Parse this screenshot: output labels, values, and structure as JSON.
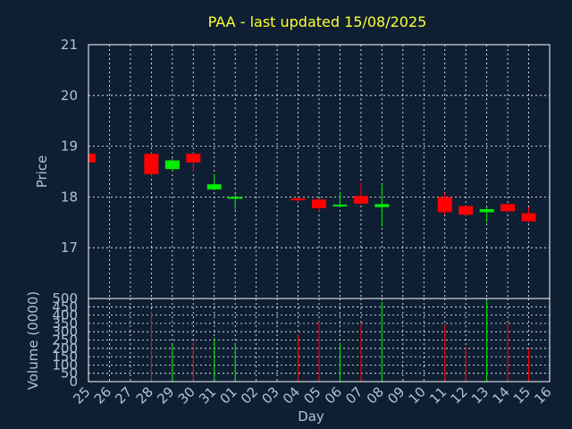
{
  "colors": {
    "background": "#0f1f33",
    "frame": "#ffffff",
    "grid": "#ffffff",
    "text": "#a8c4dc",
    "title": "#ffff33",
    "up": "#00ee00",
    "down": "#ff0000"
  },
  "chart_data": {
    "type": "candlestick",
    "title": "PAA - last updated 15/08/2025",
    "xlabel": "Day",
    "ylabel": "Price",
    "volume_label": "Volume (0000)",
    "x_ticks": [
      "25",
      "26",
      "27",
      "28",
      "29",
      "30",
      "31",
      "01",
      "02",
      "03",
      "04",
      "05",
      "06",
      "07",
      "08",
      "09",
      "10",
      "11",
      "12",
      "13",
      "14",
      "15",
      "16"
    ],
    "price_ylim": [
      16.0,
      21.0
    ],
    "price_ticks": [
      17,
      18,
      19,
      20,
      21
    ],
    "volume_ylim": [
      0,
      500
    ],
    "volume_ticks": [
      0,
      50,
      100,
      150,
      200,
      250,
      300,
      350,
      400,
      450,
      500
    ],
    "grid": true,
    "candles": [
      {
        "day": "25",
        "open": 18.85,
        "close": 18.68,
        "high": 18.9,
        "low": 18.65,
        "volume": 0
      },
      {
        "day": "28",
        "open": 18.85,
        "close": 18.45,
        "high": 18.88,
        "low": 18.4,
        "volume": 420
      },
      {
        "day": "29",
        "open": 18.55,
        "close": 18.72,
        "high": 18.75,
        "low": 18.5,
        "volume": 225
      },
      {
        "day": "30",
        "open": 18.85,
        "close": 18.68,
        "high": 18.88,
        "low": 18.5,
        "volume": 240
      },
      {
        "day": "31",
        "open": 18.15,
        "close": 18.25,
        "high": 18.45,
        "low": 18.13,
        "volume": 265
      },
      {
        "day": "01",
        "open": 18.0,
        "close": 18.0,
        "high": 18.05,
        "low": 17.75,
        "volume": 225
      },
      {
        "day": "04",
        "open": 17.97,
        "close": 17.95,
        "high": 18.0,
        "low": 17.9,
        "volume": 285
      },
      {
        "day": "05",
        "open": 17.95,
        "close": 17.78,
        "high": 17.97,
        "low": 17.72,
        "volume": 360
      },
      {
        "day": "06",
        "open": 17.82,
        "close": 17.85,
        "high": 18.1,
        "low": 17.8,
        "volume": 235
      },
      {
        "day": "07",
        "open": 18.02,
        "close": 17.87,
        "high": 18.28,
        "low": 17.85,
        "volume": 350
      },
      {
        "day": "08",
        "open": 17.8,
        "close": 17.86,
        "high": 18.25,
        "low": 17.42,
        "volume": 480
      },
      {
        "day": "11",
        "open": 18.0,
        "close": 17.7,
        "high": 18.08,
        "low": 17.65,
        "volume": 345
      },
      {
        "day": "12",
        "open": 17.82,
        "close": 17.65,
        "high": 17.84,
        "low": 17.62,
        "volume": 210
      },
      {
        "day": "13",
        "open": 17.7,
        "close": 17.76,
        "high": 17.8,
        "low": 17.5,
        "volume": 490
      },
      {
        "day": "14",
        "open": 17.86,
        "close": 17.72,
        "high": 17.88,
        "low": 17.7,
        "volume": 350
      },
      {
        "day": "15",
        "open": 17.68,
        "close": 17.52,
        "high": 17.8,
        "low": 17.5,
        "volume": 200
      }
    ]
  }
}
